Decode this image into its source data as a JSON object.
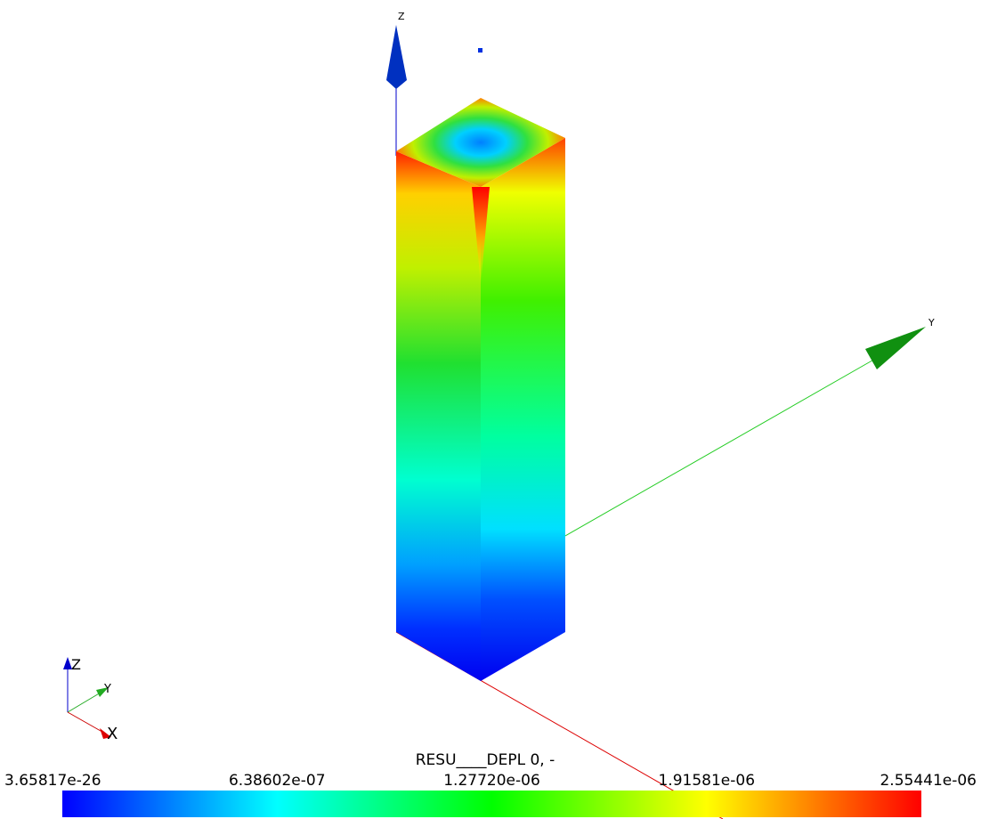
{
  "scene": {
    "axis_labels": {
      "z": "Z",
      "y": "Y"
    },
    "orientation_triad": {
      "z": "Z",
      "y": "Y",
      "x": "X"
    }
  },
  "color_bar": {
    "title": "RESU____DEPL 0, -",
    "labels": [
      "3.65817e-26",
      "6.38602e-07",
      "1.27720e-06",
      "1.91581e-06",
      "2.55441e-06"
    ]
  }
}
